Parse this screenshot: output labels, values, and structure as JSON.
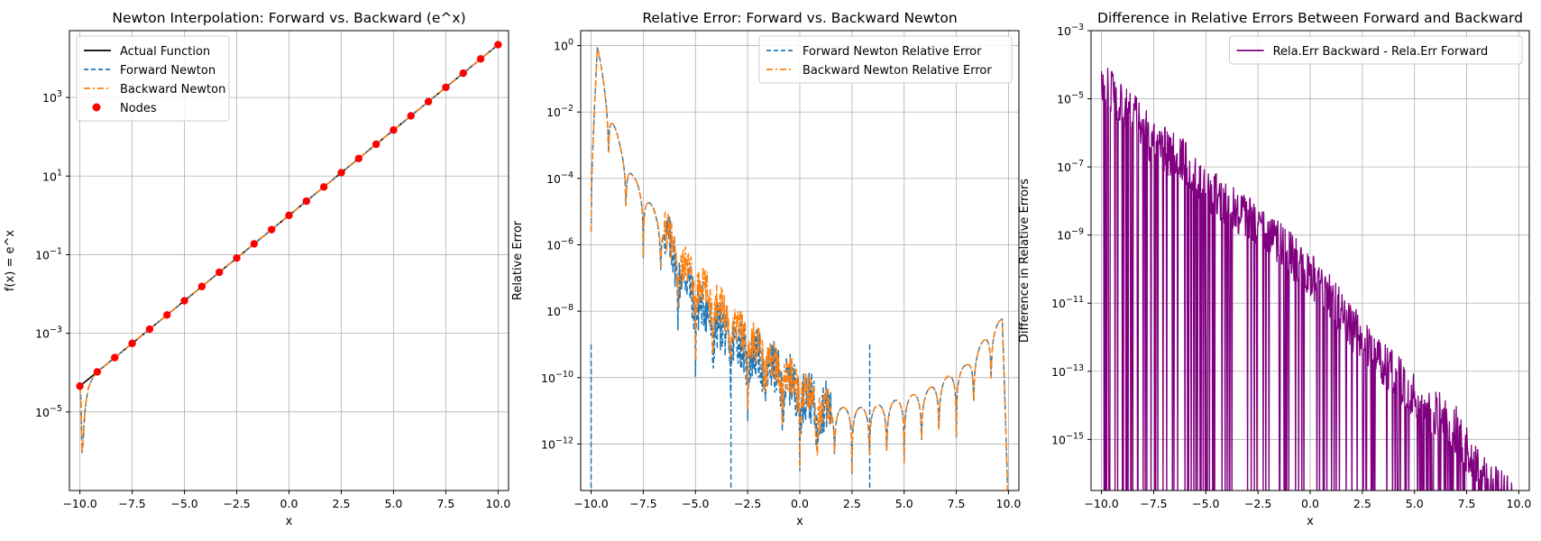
{
  "chart_data": [
    {
      "type": "line",
      "title": "Newton Interpolation: Forward vs. Backward (e^x)",
      "xlabel": "x",
      "ylabel": "f(x) = e^x",
      "yscale": "log",
      "xlim": [
        -10.5,
        10.5
      ],
      "ylim_exp": [
        -7,
        4.7
      ],
      "xticks": [
        "−10.0",
        "−7.5",
        "−5.0",
        "−2.5",
        "0.0",
        "2.5",
        "5.0",
        "7.5",
        "10.0"
      ],
      "ytick_base": "10",
      "ytick_exps": [
        "−5",
        "−3",
        "−1",
        "1",
        "3"
      ],
      "grid": true,
      "legend_position": "top-left",
      "series": [
        {
          "name": "Actual Function",
          "color": "#000000",
          "style": "solid",
          "function": "exp(x)"
        },
        {
          "name": "Forward Newton",
          "color": "#1f77b4",
          "style": "dashed",
          "near_start": {
            "x": [
              -10,
              -9.95,
              -9.9,
              -9.85,
              -9.8,
              -9.75,
              -9.7,
              -9.6,
              -9.5,
              -9.4,
              -9.3,
              -9.18
            ],
            "y": [
              4.5e-05,
              2e-05,
              9e-07,
              1.5e-06,
              5e-06,
              1.1e-05,
              1.9e-05,
              3.8e-05,
              5.5e-05,
              7e-05,
              8.5e-05,
              0.000103
            ]
          }
        },
        {
          "name": "Backward Newton",
          "color": "#ff7f0e",
          "style": "dashdot",
          "near_start": {
            "x": [
              -10,
              -9.95,
              -9.9,
              -9.85,
              -9.8,
              -9.75,
              -9.7,
              -9.6,
              -9.5,
              -9.4,
              -9.3,
              -9.18
            ],
            "y": [
              4.5e-05,
              2e-05,
              9e-07,
              1.5e-06,
              5e-06,
              1.1e-05,
              1.9e-05,
              3.8e-05,
              5.5e-05,
              7e-05,
              8.5e-05,
              0.000103
            ]
          }
        },
        {
          "name": "Nodes",
          "color": "#ff0000",
          "style": "markers",
          "x_from": -10,
          "x_to": 10,
          "count": 25,
          "function": "exp(x)"
        }
      ]
    },
    {
      "type": "line",
      "title": "Relative Error: Forward vs. Backward Newton",
      "xlabel": "x",
      "ylabel": "Relative Error",
      "yscale": "log",
      "xlim": [
        -10.5,
        10.5
      ],
      "ylim_exp": [
        -13.4,
        0.45
      ],
      "xticks": [
        "−10.0",
        "−7.5",
        "−5.0",
        "−2.5",
        "0.0",
        "2.5",
        "5.0",
        "7.5",
        "10.0"
      ],
      "ytick_base": "10",
      "ytick_exps": [
        "−12",
        "−10",
        "−8",
        "−6",
        "−4",
        "−2",
        "0"
      ],
      "grid": true,
      "legend_position": "top-right",
      "series": [
        {
          "name": "Forward Newton Relative Error",
          "color": "#1f77b4",
          "style": "dashed",
          "envelope": {
            "x": [
              -10,
              -9.7,
              -9.2,
              -8.6,
              -8.0,
              -7.2,
              -6.5,
              -5.8,
              -5.0,
              -4.0,
              -3.0,
              -2.0,
              -1.0,
              0.0,
              1.0,
              2.0,
              3.0,
              4.0,
              5.0,
              6.0,
              7.0,
              8.0,
              9.0,
              9.7,
              10.0
            ],
            "log10_y": [
              -3.6,
              0.0,
              -1.7,
              -3.0,
              -3.9,
              -4.7,
              -5.5,
              -6.5,
              -7.5,
              -8.3,
              -8.8,
              -9.3,
              -9.8,
              -10.3,
              -10.8,
              -10.9,
              -10.9,
              -10.8,
              -10.6,
              -10.4,
              -10.0,
              -9.6,
              -8.7,
              -8.2,
              -13.5
            ],
            "dips_x": [
              -10.0,
              -3.3,
              3.35
            ]
          }
        },
        {
          "name": "Backward Newton Relative Error",
          "color": "#ff7f0e",
          "style": "dashdot",
          "envelope": {
            "x": [
              -10,
              -9.7,
              -9.2,
              -8.6,
              -8.0,
              -7.2,
              -6.5,
              -5.8,
              -5.0,
              -4.0,
              -3.0,
              -2.0,
              -1.0,
              0.0,
              1.0,
              2.0,
              3.0,
              4.0,
              5.0,
              6.0,
              7.0,
              8.0,
              9.0,
              9.7,
              10.0
            ],
            "log10_y": [
              -3.6,
              0.0,
              -1.7,
              -3.0,
              -3.9,
              -4.7,
              -5.4,
              -6.3,
              -7.0,
              -7.6,
              -8.3,
              -9.0,
              -9.6,
              -10.2,
              -10.8,
              -10.9,
              -10.9,
              -10.8,
              -10.6,
              -10.4,
              -10.0,
              -9.6,
              -8.7,
              -8.2,
              -13.5
            ]
          }
        }
      ]
    },
    {
      "type": "line",
      "title": "Difference in Relative Errors Between Forward and Backward",
      "xlabel": "x",
      "ylabel": "Difference in Relative Errors",
      "yscale": "log",
      "xlim": [
        -10.5,
        10.5
      ],
      "ylim_exp": [
        -16.5,
        -3
      ],
      "xticks": [
        "−10.0",
        "−7.5",
        "−5.0",
        "−2.5",
        "0.0",
        "2.5",
        "5.0",
        "7.5",
        "10.0"
      ],
      "ytick_base": "10",
      "ytick_exps": [
        "−15",
        "−13",
        "−11",
        "−9",
        "−7",
        "−5",
        "−3"
      ],
      "grid": true,
      "legend_position": "top-right",
      "series": [
        {
          "name": "Rela.Err Backward - Rela.Err Forward",
          "color": "#800080",
          "style": "solid",
          "envelope": {
            "x": [
              -10,
              -9.2,
              -8.5,
              -7.5,
              -6.0,
              -5.0,
              -3.0,
              -1.0,
              1.0,
              3.0,
              5.0,
              7.0,
              8.0,
              9.0,
              10.0
            ],
            "log10_y": [
              -3.7,
              -4.4,
              -4.8,
              -5.6,
              -6.2,
              -6.9,
              -7.8,
              -8.8,
              -10.2,
              -11.8,
              -13.0,
              -14.0,
              -15.2,
              -15.8,
              -16.2
            ]
          }
        }
      ]
    }
  ]
}
